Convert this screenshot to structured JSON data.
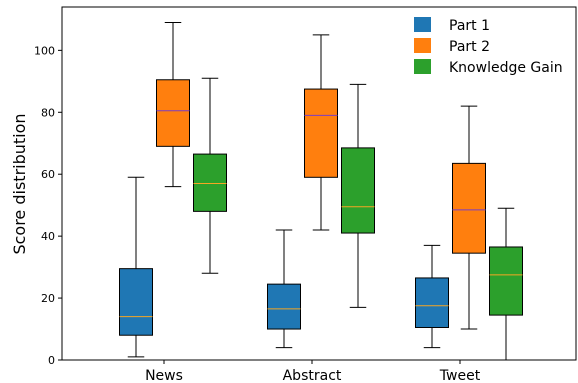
{
  "chart_data": {
    "type": "box",
    "title": "",
    "xlabel": "",
    "ylabel": "Score distribution",
    "ylim": [
      0,
      114
    ],
    "yticks": [
      0,
      20,
      40,
      60,
      80,
      100
    ],
    "categories": [
      "News",
      "Abstract",
      "Tweet"
    ],
    "legend_position": "top-right",
    "grid": false,
    "median_color": "#f5a623",
    "series": [
      {
        "name": "Part 1",
        "color": "#1f77b4",
        "boxes": [
          {
            "whisker_low": 1,
            "q1": 8,
            "median": 14,
            "q3": 29.5,
            "whisker_high": 59
          },
          {
            "whisker_low": 4,
            "q1": 10,
            "median": 16.5,
            "q3": 24.5,
            "whisker_high": 42
          },
          {
            "whisker_low": 4,
            "q1": 10.5,
            "median": 17.5,
            "q3": 26.5,
            "whisker_high": 37
          }
        ]
      },
      {
        "name": "Part 2",
        "color": "#ff7f0e",
        "boxes": [
          {
            "whisker_low": 56,
            "q1": 69,
            "median": 80.5,
            "q3": 90.5,
            "whisker_high": 109
          },
          {
            "whisker_low": 42,
            "q1": 59,
            "median": 79,
            "q3": 87.5,
            "whisker_high": 105
          },
          {
            "whisker_low": 10,
            "q1": 34.5,
            "median": 48.5,
            "q3": 63.5,
            "whisker_high": 82
          }
        ]
      },
      {
        "name": "Knowledge Gain",
        "color": "#2ca02c",
        "boxes": [
          {
            "whisker_low": 28,
            "q1": 48,
            "median": 57,
            "q3": 66.5,
            "whisker_high": 91
          },
          {
            "whisker_low": 17,
            "q1": 41,
            "median": 49.5,
            "q3": 68.5,
            "whisker_high": 89
          },
          {
            "whisker_low": 0,
            "q1": 14.5,
            "median": 27.5,
            "q3": 36.5,
            "whisker_high": 49
          }
        ]
      }
    ]
  }
}
